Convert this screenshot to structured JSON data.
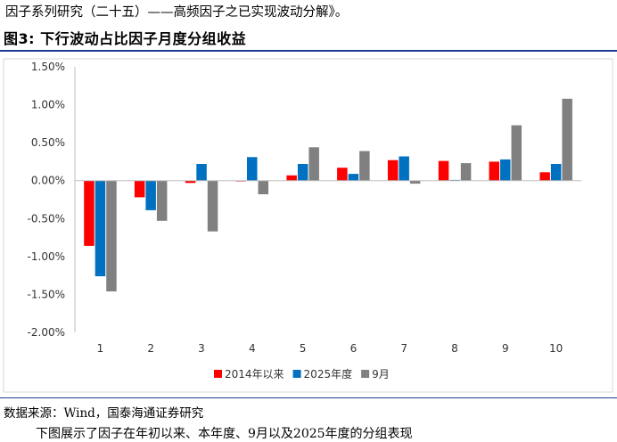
{
  "header": {
    "top_text": "因子系列研究（二十五）——高频因子之已实现波动分解》。",
    "figure_title": "图3:  下行波动占比因子月度分组收益"
  },
  "footer": {
    "source": "数据来源：Wind，国泰海通证券研究",
    "cut_text": "下图展示了因子在年初以来、本年度、9月以及2025年度的分组表现"
  },
  "chart_data": {
    "type": "bar",
    "categories": [
      "1",
      "2",
      "3",
      "4",
      "5",
      "6",
      "7",
      "8",
      "9",
      "10"
    ],
    "series": [
      {
        "name": "2014年以来",
        "color": "#ff0000",
        "values": [
          -0.86,
          -0.22,
          -0.03,
          -0.01,
          0.07,
          0.17,
          0.27,
          0.26,
          0.25,
          0.11
        ]
      },
      {
        "name": "2025年度",
        "color": "#0070c0",
        "values": [
          -1.26,
          -0.39,
          0.22,
          0.31,
          0.22,
          0.09,
          0.32,
          0.01,
          0.28,
          0.22
        ]
      },
      {
        "name": "9月",
        "color": "#808080",
        "values": [
          -1.46,
          -0.53,
          -0.67,
          -0.18,
          0.44,
          0.39,
          -0.04,
          0.23,
          0.73,
          1.08
        ]
      }
    ],
    "y_ticks": [
      "1.50%",
      "1.00%",
      "0.50%",
      "0.00%",
      "-0.50%",
      "-1.00%",
      "-1.50%",
      "-2.00%"
    ],
    "ylim": [
      -2.0,
      1.5
    ],
    "grid": false,
    "legend": "bottom-center"
  }
}
